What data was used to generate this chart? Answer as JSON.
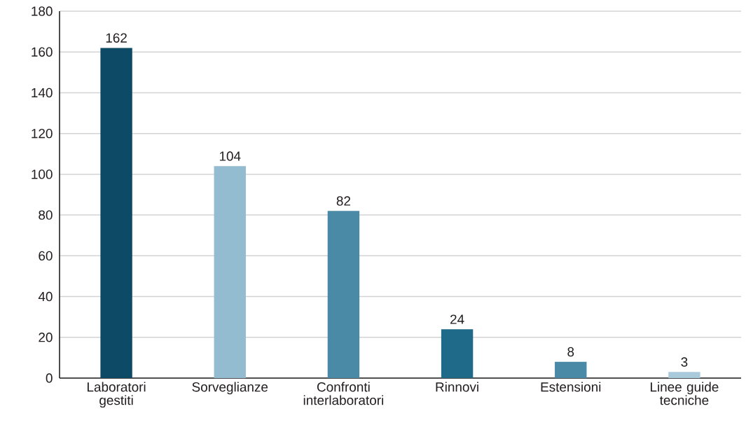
{
  "chart_data": {
    "type": "bar",
    "categories": [
      "Laboratori gestiti",
      "Sorveglianze",
      "Confronti interlaboratori",
      "Rinnovi",
      "Estensioni",
      "Linee guide tecniche"
    ],
    "values": [
      162,
      104,
      82,
      24,
      8,
      3
    ],
    "colors": [
      "#0d4a66",
      "#94bcd0",
      "#4b8aa6",
      "#1e6a88",
      "#4b8aa6",
      "#a9cadb"
    ],
    "ylim": [
      0,
      180
    ],
    "yticks": [
      0,
      20,
      40,
      60,
      80,
      100,
      120,
      140,
      160,
      180
    ],
    "grid": "y",
    "data_labels": true
  }
}
